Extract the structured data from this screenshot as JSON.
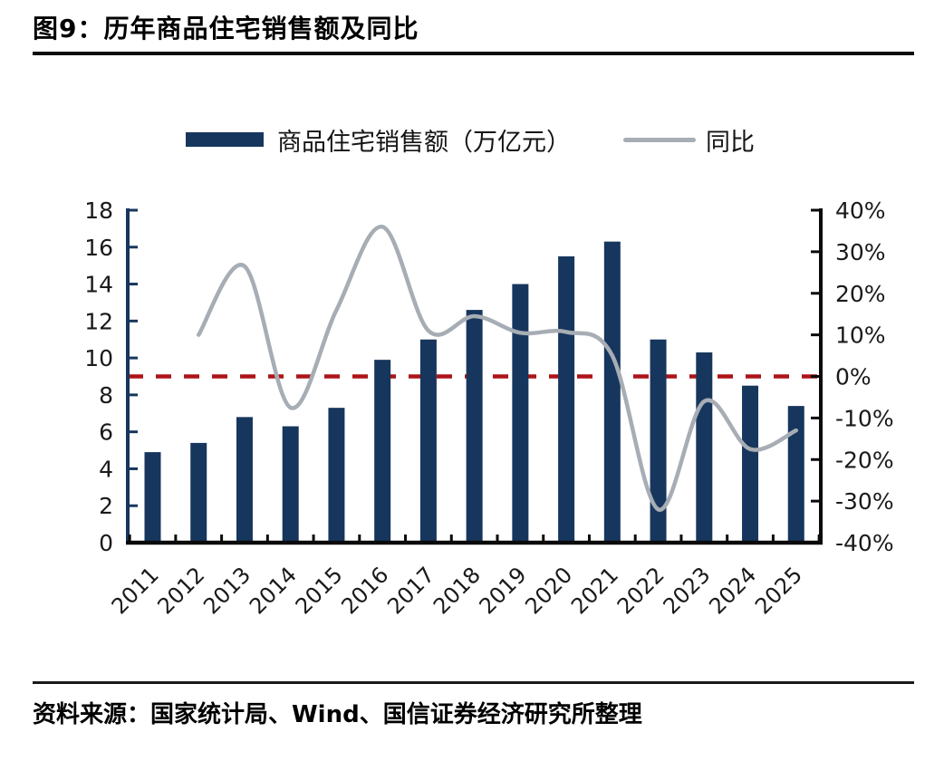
{
  "figure": {
    "title": "图9：历年商品住宅销售额及同比",
    "source": "资料来源：国家统计局、Wind、国信证券经济研究所整理"
  },
  "legend": {
    "bar_label": "商品住宅销售额（万亿元）",
    "line_label": "同比"
  },
  "colors": {
    "bar": "#17365d",
    "line": "#a7adb4",
    "zero_line": "#ad1418",
    "left_axis": "#17365d",
    "black_axis": "#0a0a0a",
    "tick_text": "#1a1a1a"
  },
  "chart_data": {
    "type": "bar",
    "title": "历年商品住宅销售额及同比",
    "categories": [
      "2011",
      "2012",
      "2013",
      "2014",
      "2015",
      "2016",
      "2017",
      "2018",
      "2019",
      "2020",
      "2021",
      "2022",
      "2023",
      "2024",
      "2025"
    ],
    "series": [
      {
        "name": "商品住宅销售额（万亿元）",
        "type": "bar",
        "axis": "left",
        "values": [
          4.9,
          5.4,
          6.8,
          6.3,
          7.3,
          9.9,
          11.0,
          12.6,
          14.0,
          15.5,
          16.3,
          11.0,
          10.3,
          8.5,
          7.4
        ]
      },
      {
        "name": "同比",
        "type": "line",
        "axis": "right",
        "values": [
          null,
          10,
          26.5,
          -7.5,
          16,
          36,
          11,
          14.5,
          10.5,
          10.7,
          5,
          -32,
          -6,
          -17.5,
          -13
        ]
      }
    ],
    "left_axis": {
      "min": 0,
      "max": 18,
      "step": 2,
      "tick_labels": [
        "0",
        "2",
        "4",
        "6",
        "8",
        "10",
        "12",
        "14",
        "16",
        "18"
      ]
    },
    "right_axis": {
      "min": -40,
      "max": 40,
      "step": 10,
      "tick_labels": [
        "40%",
        "30%",
        "20%",
        "10%",
        "0%",
        "-10%",
        "-20%",
        "-30%",
        "-40%"
      ],
      "unit": "%"
    },
    "reference_line": {
      "value_pct": 0,
      "style": "dashed",
      "color": "#ad1418"
    },
    "grid": false,
    "legend_position": "top-center"
  }
}
